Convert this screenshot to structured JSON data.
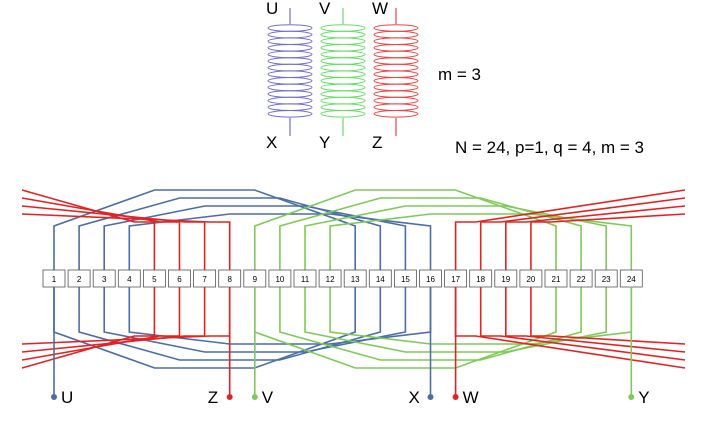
{
  "coils": [
    {
      "name": "U",
      "start_label": "U",
      "end_label": "X",
      "color": "#6f6fd0"
    },
    {
      "name": "V",
      "start_label": "V",
      "end_label": "Y",
      "color": "#66dd66"
    },
    {
      "name": "W",
      "start_label": "W",
      "end_label": "Z",
      "color": "#ee4444"
    }
  ],
  "phase_count_label": "m = 3",
  "parameters_label": "N = 24, p=1, q = 4, m = 3",
  "slots": [
    "1",
    "2",
    "3",
    "4",
    "5",
    "6",
    "7",
    "8",
    "9",
    "10",
    "11",
    "12",
    "13",
    "14",
    "15",
    "16",
    "17",
    "18",
    "19",
    "20",
    "21",
    "22",
    "23",
    "24"
  ],
  "terminals": [
    {
      "label": "U",
      "slot": 1,
      "color": "#4a6ea9"
    },
    {
      "label": "Z",
      "slot": 8,
      "color": "#e52222"
    },
    {
      "label": "V",
      "slot": 9,
      "color": "#7ccc55"
    },
    {
      "label": "X",
      "slot": 16,
      "color": "#4a6ea9"
    },
    {
      "label": "W",
      "slot": 17,
      "color": "#e52222"
    },
    {
      "label": "Y",
      "slot": 24,
      "color": "#7ccc55"
    }
  ],
  "windings": [
    {
      "phase": "U",
      "color": "#4a6ea9",
      "slots": [
        1,
        2,
        3,
        4,
        13,
        14,
        15,
        16
      ]
    },
    {
      "phase": "V",
      "color": "#7ccc55",
      "slots": [
        9,
        10,
        11,
        12,
        21,
        22,
        23,
        24
      ]
    },
    {
      "phase": "W",
      "color": "#e52222",
      "slots": [
        17,
        18,
        19,
        20,
        5,
        6,
        7,
        8
      ]
    }
  ]
}
